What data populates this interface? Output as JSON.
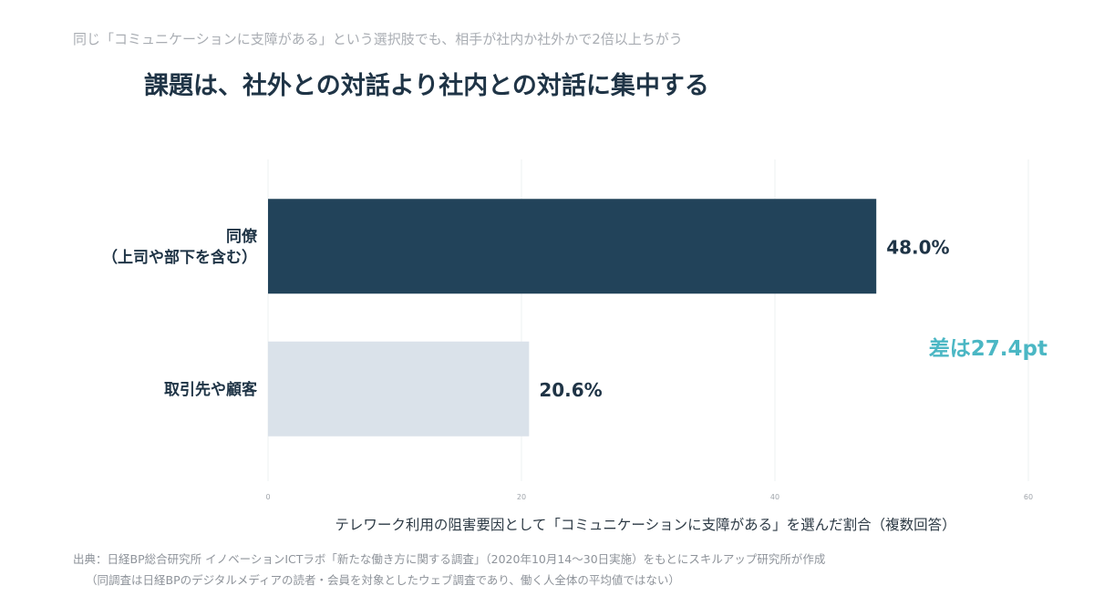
{
  "header": {
    "subtitle": "同じ「コミュニケーションに支障がある」という選択肢でも、相手が社内か社外かで2倍以上ちがう",
    "title": "課題は、社外との対話より社内との対話に集中する"
  },
  "chart_data": {
    "type": "bar",
    "orientation": "horizontal",
    "categories": [
      [
        "同僚",
        "（上司や部下を含む）"
      ],
      [
        "取引先や顧客"
      ]
    ],
    "values": [
      48.0,
      20.6
    ],
    "value_labels": [
      "48.0%",
      "20.6%"
    ],
    "xlim": [
      0,
      60
    ],
    "xticks": [
      0,
      20,
      40,
      60
    ],
    "xtick_labels": [
      "0",
      "20",
      "40",
      "60"
    ],
    "xlabel": "テレワーク利用の阻害要因として「コミュニケーションに支障がある」を選んだ割合（複数回答）",
    "grid": true,
    "colors": [
      "#22435a",
      "#dae2ea"
    ],
    "annotation": {
      "text": "差は27.4pt",
      "color": "#4bb7c4"
    }
  },
  "footer": {
    "source": "出典：日経BP総合研究所 イノベーションICTラボ「新たな働き方に関する調査」（2020年10月14〜30日実施）をもとにスキルアップ研究所が作成",
    "note": "（同調査は日経BPのデジタルメディアの読者・会員を対象としたウェブ調査であり、働く人全体の平均値ではない）"
  }
}
